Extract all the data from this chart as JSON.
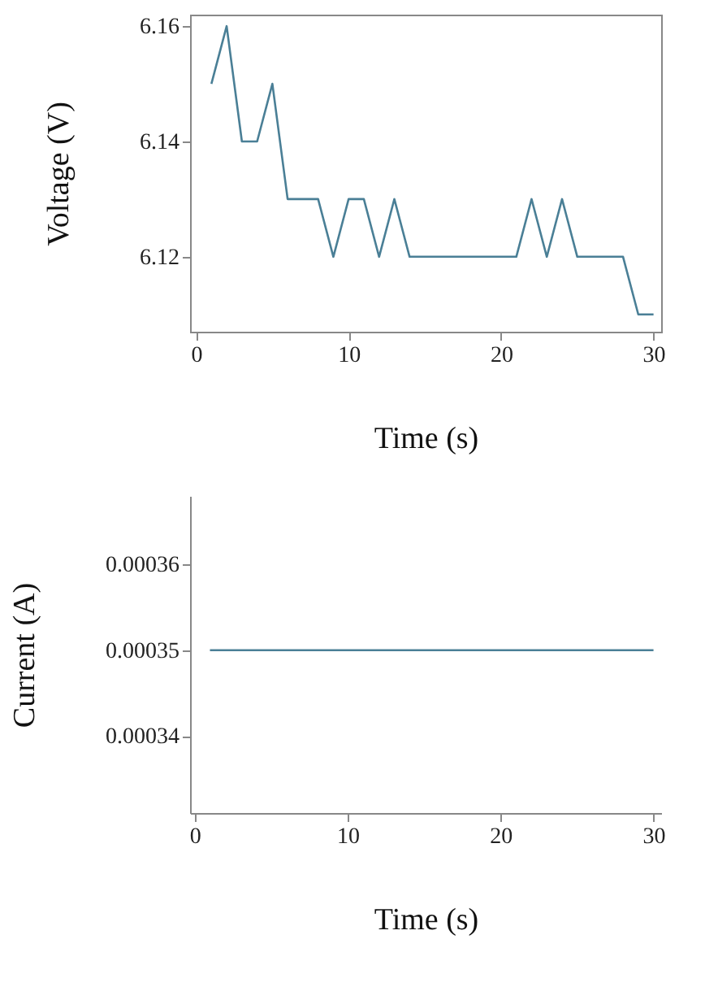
{
  "chart_data": [
    {
      "type": "line",
      "xlabel": "Time (s)",
      "ylabel": "Voltage (V)",
      "x": [
        1,
        2,
        3,
        4,
        5,
        6,
        7,
        8,
        9,
        10,
        11,
        12,
        13,
        14,
        15,
        16,
        17,
        18,
        19,
        20,
        21,
        22,
        23,
        24,
        25,
        26,
        27,
        28,
        29,
        30
      ],
      "series": [
        {
          "color": "#4a7f96",
          "values": [
            6.15,
            6.16,
            6.14,
            6.14,
            6.15,
            6.13,
            6.13,
            6.13,
            6.12,
            6.13,
            6.13,
            6.12,
            6.13,
            6.12,
            6.12,
            6.12,
            6.12,
            6.12,
            6.12,
            6.12,
            6.12,
            6.13,
            6.12,
            6.13,
            6.12,
            6.12,
            6.12,
            6.12,
            6.11,
            6.11
          ]
        }
      ],
      "xlim": [
        -0.4,
        30.5
      ],
      "ylim": [
        6.107,
        6.162
      ],
      "xticks": [
        0,
        10,
        20,
        30
      ],
      "yticks": [
        6.12,
        6.14,
        6.16
      ],
      "grid": false
    },
    {
      "type": "line",
      "xlabel": "Time (s)",
      "ylabel": "Current (A)",
      "x": [
        1,
        30
      ],
      "series": [
        {
          "color": "#4a7f96",
          "values": [
            0.00035,
            0.00035
          ]
        }
      ],
      "xlim": [
        -0.3,
        30.5
      ],
      "ylim": [
        0.000331,
        0.000368
      ],
      "xticks": [
        0,
        10,
        20,
        30
      ],
      "yticks": [
        0.00034,
        0.00035,
        0.00036
      ],
      "grid": false
    }
  ]
}
